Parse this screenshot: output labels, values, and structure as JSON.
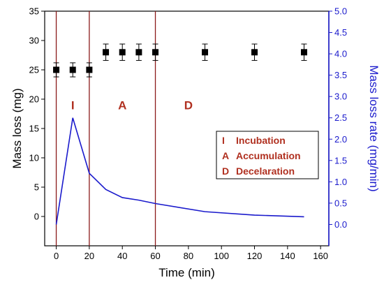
{
  "chart_data": {
    "type": "scatter",
    "xlabel": "Time (min)",
    "ylabel_left": "Mass loss (mg)",
    "ylabel_right": "Mass loss rate (mg/min)",
    "xlim": [
      -7,
      165
    ],
    "xticks": [
      0,
      20,
      40,
      60,
      80,
      100,
      120,
      140,
      160
    ],
    "ylim_left": [
      -5,
      35
    ],
    "yticks_left": [
      0,
      5,
      10,
      15,
      20,
      25,
      30,
      35
    ],
    "ylim_right": [
      -0.5,
      5.0
    ],
    "yticks_right": [
      "0.0",
      "0.5",
      "1.0",
      "1.5",
      "2.0",
      "2.5",
      "3.0",
      "3.5",
      "4.0",
      "4.5",
      "5.0"
    ],
    "series": [
      {
        "axis": "left",
        "marker": "square",
        "color": "#000000",
        "x": [
          0,
          10,
          20,
          30,
          40,
          50,
          60,
          90,
          120,
          150
        ],
        "y": [
          25,
          25,
          25,
          28,
          28,
          28,
          28,
          28,
          28,
          28
        ],
        "error": [
          1.2,
          1.2,
          1.2,
          1.4,
          1.4,
          1.4,
          1.4,
          1.4,
          1.4,
          1.4
        ]
      },
      {
        "axis": "right",
        "style": "line",
        "color": "#1a1acc",
        "x": [
          0,
          10,
          20,
          30,
          40,
          50,
          60,
          90,
          120,
          150
        ],
        "y": [
          0.0,
          2.5,
          1.2,
          0.82,
          0.63,
          0.57,
          0.49,
          0.3,
          0.22,
          0.18
        ]
      }
    ],
    "phase_lines": [
      0,
      20,
      60
    ],
    "phase_line_color": "#8b1a1a",
    "phase_labels": [
      {
        "text": "I",
        "x": 10,
        "y": 19
      },
      {
        "text": "A",
        "x": 40,
        "y": 19
      },
      {
        "text": "D",
        "x": 80,
        "y": 19
      }
    ],
    "phase_label_color": "#b03020",
    "legend": {
      "position": "right",
      "items": [
        {
          "key": "I",
          "text": "Incubation"
        },
        {
          "key": "A",
          "text": "Accumulation"
        },
        {
          "key": "D",
          "text": "Decelaration"
        }
      ]
    },
    "right_axis_color": "#1a1acc"
  }
}
